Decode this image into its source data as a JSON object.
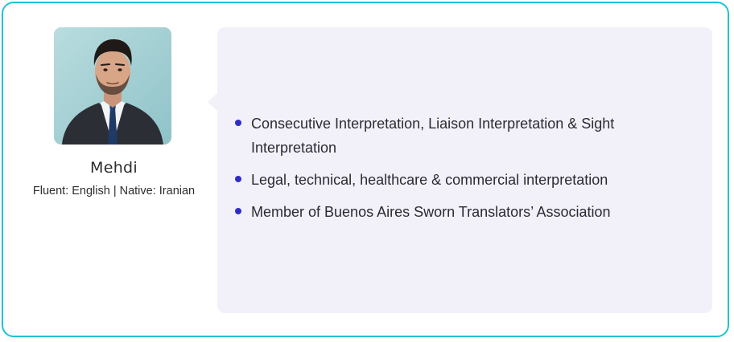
{
  "profile": {
    "name": "Mehdi",
    "languages": "Fluent: English | Native: Iranian",
    "photo_icon": "person-portrait"
  },
  "details": {
    "items": [
      "Consecutive Interpretation, Liaison Interpretation & Sight Interpretation",
      "Legal, technical, healthcare & commercial interpretation",
      "Member of Buenos Aires Sworn Translators’ Association"
    ]
  },
  "colors": {
    "border": "#1ec4d1",
    "bubble_bg": "#f2f1fa",
    "bullet": "#2f2dc9",
    "text": "#2b2b33"
  }
}
